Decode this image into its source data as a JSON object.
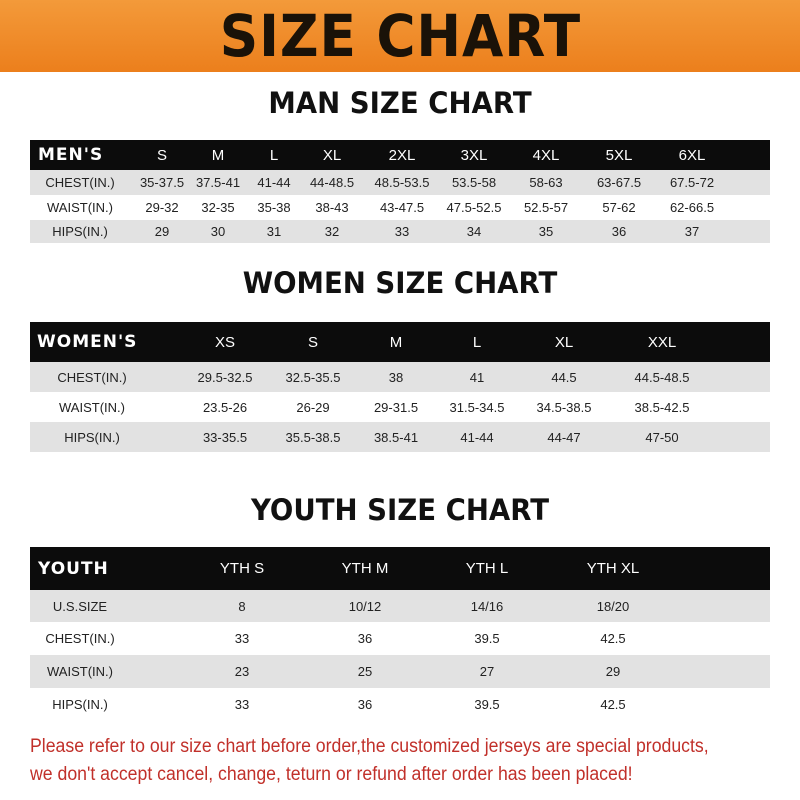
{
  "banner": {
    "title": "SIZE CHART",
    "color": "#ee8420"
  },
  "men": {
    "title": "MAN SIZE CHART",
    "headers": [
      "MEN'S",
      "S",
      "M",
      "L",
      "XL",
      "2XL",
      "3XL",
      "4XL",
      "5XL",
      "6XL"
    ],
    "rows": [
      [
        "CHEST(IN.)",
        "35-37.5",
        "37.5-41",
        "41-44",
        "44-48.5",
        "48.5-53.5",
        "53.5-58",
        "58-63",
        "63-67.5",
        "67.5-72"
      ],
      [
        "WAIST(IN.)",
        "29-32",
        "32-35",
        "35-38",
        "38-43",
        "43-47.5",
        "47.5-52.5",
        "52.5-57",
        "57-62",
        "62-66.5"
      ],
      [
        "HIPS(IN.)",
        "29",
        "30",
        "31",
        "32",
        "33",
        "34",
        "35",
        "36",
        "37"
      ]
    ]
  },
  "women": {
    "title": "WOMEN SIZE CHART",
    "headers": [
      "WOMEN'S",
      "XS",
      "S",
      "M",
      "L",
      "XL",
      "XXL"
    ],
    "rows": [
      [
        "CHEST(IN.)",
        "29.5-32.5",
        "32.5-35.5",
        "38",
        "41",
        "44.5",
        "44.5-48.5"
      ],
      [
        "WAIST(IN.)",
        "23.5-26",
        "26-29",
        "29-31.5",
        "31.5-34.5",
        "34.5-38.5",
        "38.5-42.5"
      ],
      [
        "HIPS(IN.)",
        "33-35.5",
        "35.5-38.5",
        "38.5-41",
        "41-44",
        "44-47",
        "47-50"
      ]
    ]
  },
  "youth": {
    "title": "YOUTH SIZE CHART",
    "headers": [
      "YOUTH",
      "YTH S",
      "YTH M",
      "YTH L",
      "YTH XL"
    ],
    "rows": [
      [
        "U.S.SIZE",
        "8",
        "10/12",
        "14/16",
        "18/20"
      ],
      [
        "CHEST(IN.)",
        "33",
        "36",
        "39.5",
        "42.5"
      ],
      [
        "WAIST(IN.)",
        "23",
        "25",
        "27",
        "29"
      ],
      [
        "HIPS(IN.)",
        "33",
        "36",
        "39.5",
        "42.5"
      ]
    ]
  },
  "footer": {
    "line1": "Please refer to our size chart before order,the customized jerseys are special products,",
    "line2": "we don't accept cancel, change, teturn or refund after order has been placed!",
    "color": "#c1302a"
  }
}
